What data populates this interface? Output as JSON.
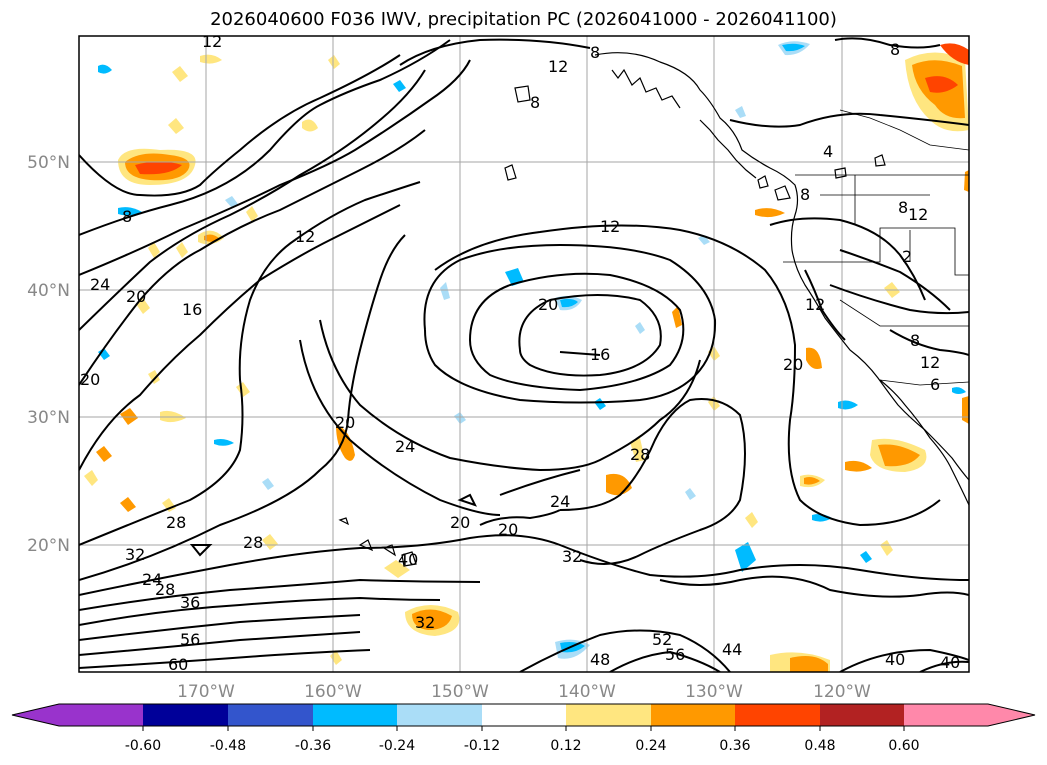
{
  "title": "2026040600 F036 IWV, precipitation PC (2026041000 - 2026041100)",
  "map": {
    "lat_labels": [
      "50°N",
      "40°N",
      "30°N",
      "20°N"
    ],
    "lon_labels": [
      "170°W",
      "160°W",
      "150°W",
      "140°W",
      "130°W",
      "120°W"
    ],
    "lat_range": [
      10,
      60
    ],
    "lon_range": [
      -180,
      -110
    ],
    "iwv_contour_levels": [
      8,
      12,
      16,
      20,
      24,
      28,
      32,
      36,
      40,
      44,
      48,
      52,
      56,
      60
    ],
    "contour_labels": [
      "12",
      "8",
      "12",
      "8",
      "8",
      "4",
      "8",
      "8",
      "12",
      "12",
      "24",
      "20",
      "16",
      "12",
      "20",
      "16",
      "20",
      "12",
      "20",
      "24",
      "20",
      "28",
      "24",
      "20",
      "20",
      "28",
      "28",
      "32",
      "32",
      "24",
      "28",
      "36",
      "56",
      "60",
      "40",
      "32",
      "52",
      "56",
      "48",
      "44",
      "40",
      "40",
      "8",
      "12",
      "2",
      "6",
      "8"
    ]
  },
  "colorbar": {
    "ticks": [
      "-0.60",
      "-0.48",
      "-0.36",
      "-0.24",
      "-0.12",
      "0.12",
      "0.24",
      "0.36",
      "0.48",
      "0.60"
    ],
    "colors": [
      "#9933cc",
      "#000099",
      "#3355cc",
      "#00bbff",
      "#aaddf7",
      "#ffffff",
      "#ffe680",
      "#ff9900",
      "#ff4400",
      "#b22222",
      "#ff88aa"
    ],
    "extend": "both"
  }
}
